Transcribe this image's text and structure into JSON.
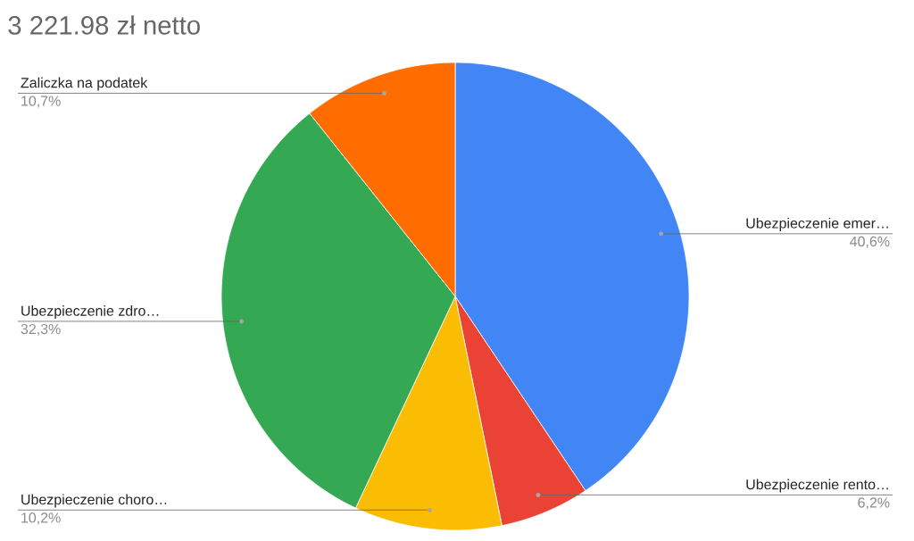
{
  "chart_data": {
    "type": "pie",
    "title": "3 221.98 zł netto",
    "categories": [
      "Ubezpieczenie emer…",
      "Ubezpieczenie rento…",
      "Ubezpieczenie choro…",
      "Ubezpieczenie zdro…",
      "Zaliczka na podatek"
    ],
    "values": [
      40.6,
      6.2,
      10.2,
      32.3,
      10.7
    ],
    "value_labels": [
      "40,6%",
      "6,2%",
      "10,2%",
      "32,3%",
      "10,7%"
    ],
    "colors": [
      "#4285f4",
      "#ea4335",
      "#fbbc04",
      "#34a853",
      "#ff6d01"
    ]
  }
}
